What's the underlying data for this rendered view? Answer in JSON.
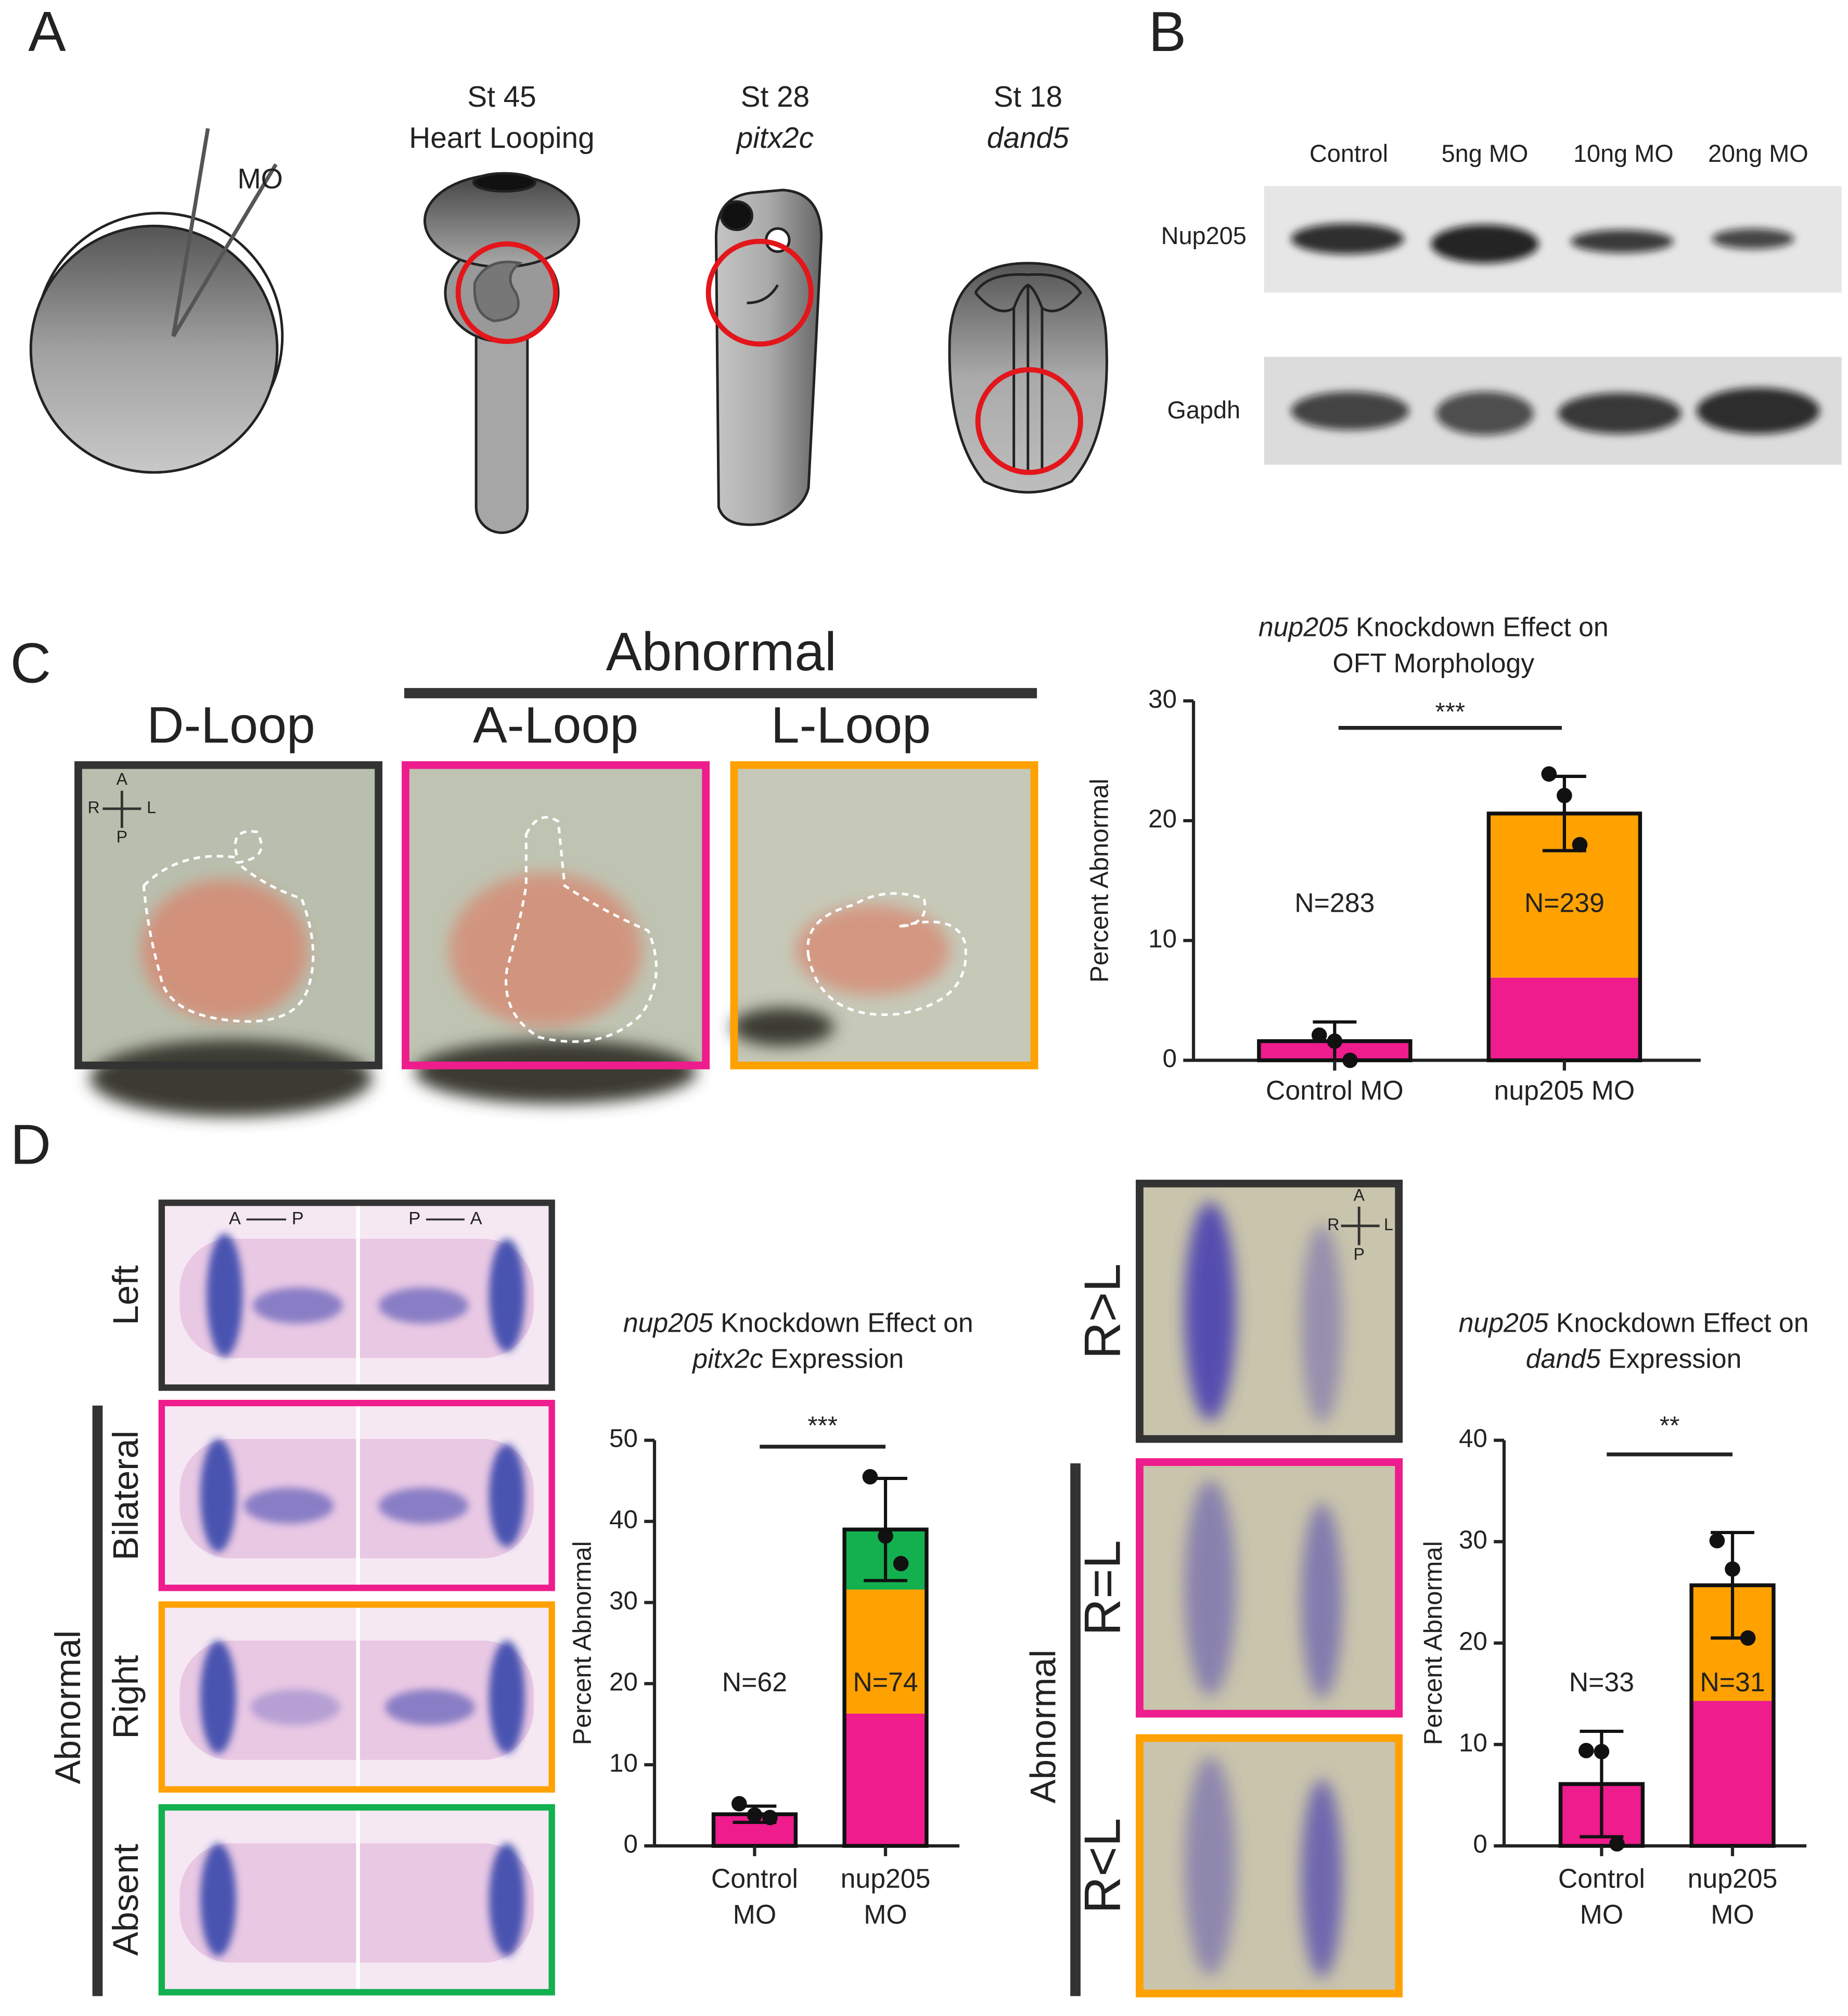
{
  "panel_labels": [
    "A",
    "B",
    "C",
    "D"
  ],
  "injection": {
    "label": "MO"
  },
  "stages": [
    {
      "stage": "St 45",
      "marker": "Heart Looping",
      "italic": false
    },
    {
      "stage": "St 28",
      "marker": "pitx2c",
      "italic": true
    },
    {
      "stage": "St 18",
      "marker": "dand5",
      "italic": true
    }
  ],
  "western_blot": {
    "lanes": [
      "Control",
      "5ng MO",
      "10ng MO",
      "20ng MO"
    ],
    "proteins": [
      "Nup205",
      "Gapdh"
    ]
  },
  "heart_looping": {
    "group": "Abnormal",
    "phenotypes": [
      "D-Loop",
      "A-Loop",
      "L-Loop"
    ],
    "axes": {
      "anterior": "A",
      "posterior": "P",
      "right": "R",
      "left": "L"
    }
  },
  "pitx2c_images": {
    "group": "Abnormal",
    "phenotypes": [
      "Left",
      "Bilateral",
      "Right",
      "Absent"
    ],
    "orientation": [
      {
        "from": "A",
        "to": "P"
      },
      {
        "from": "P",
        "to": "A"
      }
    ]
  },
  "dand5_images": {
    "group": "Abnormal",
    "phenotypes": [
      "R>L",
      "R=L",
      "R<L"
    ],
    "axes": {
      "anterior": "A",
      "posterior": "P",
      "right": "R",
      "left": "L"
    }
  },
  "chart_data": [
    {
      "type": "bar",
      "stacked": true,
      "title": [
        [
          {
            "text": "nup205",
            "italic": true
          },
          {
            "text": " Knockdown Effect on",
            "italic": false
          }
        ],
        [
          {
            "text": "OFT Morphology",
            "italic": false
          }
        ]
      ],
      "y_label": "Percent Abnormal",
      "categories": [
        [
          "Control MO"
        ],
        [
          "nup205 MO"
        ]
      ],
      "series": [
        {
          "color": "#ee1c8c",
          "values": [
            1.6,
            6.9
          ]
        },
        {
          "color": "#ffa100",
          "values": [
            0,
            13.7
          ]
        }
      ],
      "means": [
        1.6,
        20.6
      ],
      "errors": [
        1.6,
        3.1
      ],
      "points": [
        [
          2.1,
          1.6,
          0.0
        ],
        [
          23.9,
          22.1,
          18.0
        ]
      ],
      "n_labels": [
        "N=283",
        "N=239"
      ],
      "significance": "***",
      "ylim": [
        0,
        30
      ],
      "yticks": [
        0,
        10,
        20,
        30
      ]
    },
    {
      "type": "bar",
      "stacked": true,
      "title": [
        [
          {
            "text": "nup205",
            "italic": true
          },
          {
            "text": " Knockdown Effect on",
            "italic": false
          }
        ],
        [
          {
            "text": "pitx2c",
            "italic": true
          },
          {
            "text": " Expression",
            "italic": false
          }
        ]
      ],
      "y_label": "Percent Abnormal",
      "categories": [
        [
          "Control",
          "MO"
        ],
        [
          "nup205",
          "MO"
        ]
      ],
      "series": [
        {
          "color": "#ee1c8c",
          "values": [
            3.9,
            16.3
          ]
        },
        {
          "color": "#ffa100",
          "values": [
            0,
            15.3
          ]
        },
        {
          "color": "#13b04f",
          "values": [
            0,
            7.4
          ]
        }
      ],
      "means": [
        3.9,
        39.0
      ],
      "errors": [
        1.0,
        6.3
      ],
      "points": [
        [
          5.2,
          3.8,
          3.5
        ],
        [
          45.5,
          38.2,
          34.8
        ]
      ],
      "n_labels": [
        "N=62",
        "N=74"
      ],
      "significance": "***",
      "ylim": [
        0,
        50
      ],
      "yticks": [
        0,
        10,
        20,
        30,
        40,
        50
      ]
    },
    {
      "type": "bar",
      "stacked": true,
      "title": [
        [
          {
            "text": "nup205",
            "italic": true
          },
          {
            "text": " Knockdown Effect on",
            "italic": false
          }
        ],
        [
          {
            "text": "dand5",
            "italic": true
          },
          {
            "text": " Expression",
            "italic": false
          }
        ]
      ],
      "y_label": "Percent Abnormal",
      "categories": [
        [
          "Control",
          "MO"
        ],
        [
          "nup205",
          "MO"
        ]
      ],
      "series": [
        {
          "color": "#ee1c8c",
          "values": [
            6.1,
            14.3
          ]
        },
        {
          "color": "#ffa100",
          "values": [
            0,
            11.4
          ]
        }
      ],
      "means": [
        6.1,
        25.7
      ],
      "errors": [
        5.2,
        5.2
      ],
      "points": [
        [
          9.4,
          9.3,
          0.2
        ],
        [
          30.1,
          27.3,
          20.5
        ]
      ],
      "n_labels": [
        "N=33",
        "N=31"
      ],
      "significance": "**",
      "ylim": [
        0,
        40
      ],
      "yticks": [
        0,
        10,
        20,
        30,
        40
      ]
    }
  ]
}
